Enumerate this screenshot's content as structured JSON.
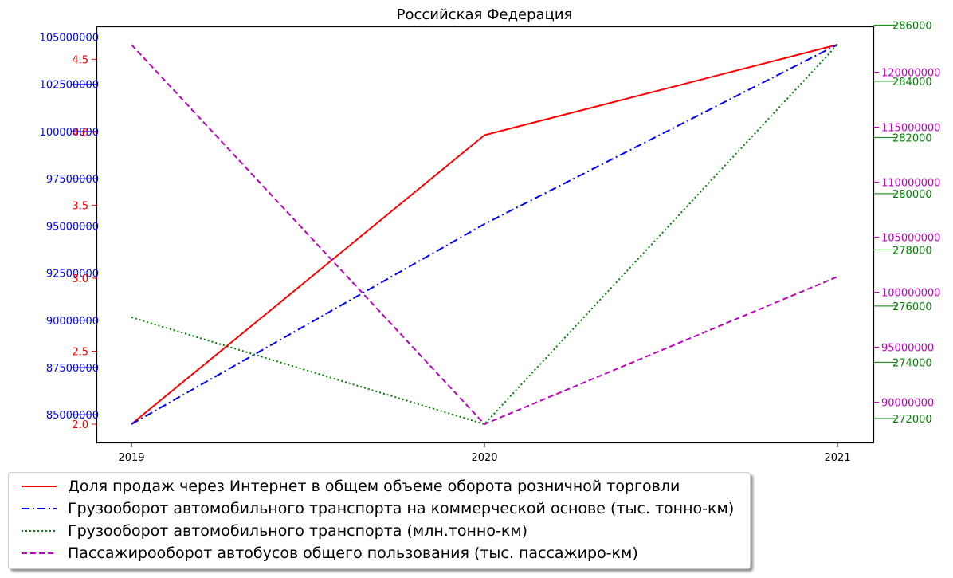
{
  "chart_data": {
    "type": "line",
    "title": "Российская Федерация",
    "categories": [
      "2019",
      "2020",
      "2021"
    ],
    "series": [
      {
        "name": "Доля продаж через Интернет в общем объеме оборота розничной торговли",
        "values": [
          2.0,
          3.98,
          4.6
        ],
        "color": "#ff0000",
        "style": "solid",
        "axis": "left-inner"
      },
      {
        "name": "Грузооборот автомобильного транспорта на коммерческой основе (тыс. тонно-км)",
        "values": [
          84500000,
          95100000,
          104600000
        ],
        "color": "#0000ff",
        "style": "dashdot",
        "axis": "left-outer"
      },
      {
        "name": "Грузооборот автомобильного транспорта (млн.тонно-км)",
        "values": [
          275600,
          271800,
          285300
        ],
        "color": "#008000",
        "style": "dotted",
        "axis": "right-outer"
      },
      {
        "name": "Пассажирооборот автобусов общего пользования (тыс. пассажиро-км)",
        "values": [
          122500000,
          88000000,
          101400000
        ],
        "color": "#c000c0",
        "style": "dashed",
        "axis": "right-inner"
      }
    ],
    "axes": {
      "left_outer": {
        "color": "#0000ff",
        "ticks": [
          "85000000",
          "87500000",
          "90000000",
          "92500000",
          "95000000",
          "97500000",
          "100000000",
          "102500000",
          "105000000"
        ],
        "range": [
          84500000,
          104600000
        ]
      },
      "left_inner": {
        "color": "#ff0000",
        "ticks": [
          "2.0",
          "2.5",
          "3.0",
          "3.5",
          "4.0",
          "4.5"
        ],
        "range": [
          2.0,
          4.6
        ]
      },
      "right_inner": {
        "color": "#c000c0",
        "ticks": [
          "90000000",
          "95000000",
          "100000000",
          "105000000",
          "110000000",
          "115000000",
          "120000000"
        ],
        "range": [
          88000000,
          122500000
        ]
      },
      "right_outer": {
        "color": "#008000",
        "ticks": [
          "272000",
          "274000",
          "276000",
          "278000",
          "280000",
          "282000",
          "284000",
          "286000"
        ],
        "range": [
          271800,
          285300
        ]
      }
    },
    "grid": false,
    "legend_position": "bottom-left"
  }
}
